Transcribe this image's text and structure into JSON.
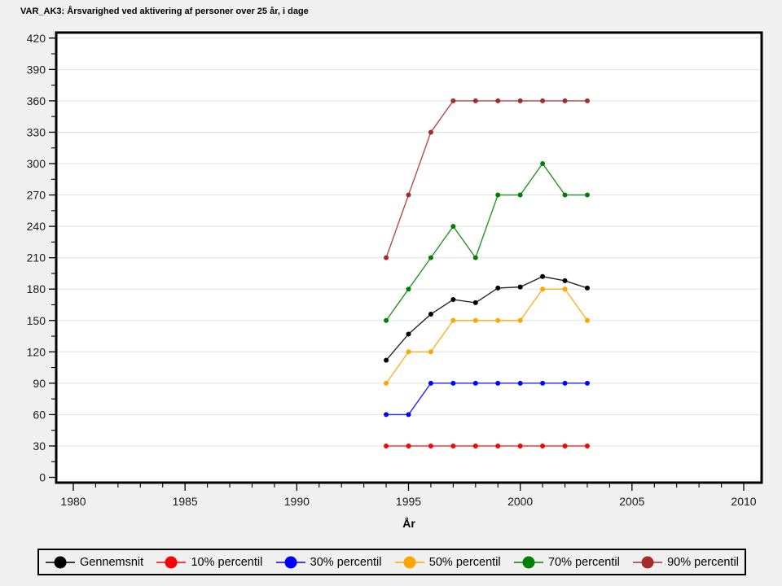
{
  "page": {
    "background": "#F0F0F0",
    "plot_background": "#FFFFFF"
  },
  "title": "VAR_AK3: Årsvarighed ved aktivering af personer over 25 år, i dage",
  "chart_data": {
    "type": "line",
    "title": "VAR_AK3: Årsvarighed ved aktivering af personer over 25 år, i dage",
    "xlabel": "År",
    "ylabel": "",
    "xlim": [
      1978.2,
      2010.8
    ],
    "ylim": [
      0,
      420
    ],
    "x_ticks": [
      1980,
      1985,
      1990,
      1995,
      2000,
      2005,
      2010
    ],
    "y_ticks": [
      0,
      30,
      60,
      90,
      120,
      150,
      180,
      210,
      240,
      270,
      300,
      330,
      360,
      390,
      420
    ],
    "grid": "horizontal",
    "legend_position": "bottom",
    "x": [
      1994,
      1995,
      1996,
      1997,
      1998,
      1999,
      2000,
      2001,
      2002,
      2003
    ],
    "series": [
      {
        "name": "Gennemsnit",
        "color": "#000000",
        "values": [
          112,
          137,
          156,
          170,
          167,
          181,
          182,
          192,
          188,
          181
        ]
      },
      {
        "name": "10% percentil",
        "color": "#FF0000",
        "values": [
          30,
          30,
          30,
          30,
          30,
          30,
          30,
          30,
          30,
          30
        ]
      },
      {
        "name": "30% percentil",
        "color": "#0000FF",
        "values": [
          60,
          60,
          90,
          90,
          90,
          90,
          90,
          90,
          90,
          90
        ]
      },
      {
        "name": "50% percentil",
        "color": "#FFA500",
        "values": [
          90,
          120,
          120,
          150,
          150,
          150,
          150,
          180,
          180,
          150
        ]
      },
      {
        "name": "70% percentil",
        "color": "#008000",
        "values": [
          150,
          180,
          210,
          240,
          210,
          270,
          270,
          300,
          270,
          270
        ]
      },
      {
        "name": "90% percentil",
        "color": "#A52A2A",
        "values": [
          210,
          270,
          330,
          360,
          360,
          360,
          360,
          360,
          360,
          360
        ]
      }
    ]
  }
}
